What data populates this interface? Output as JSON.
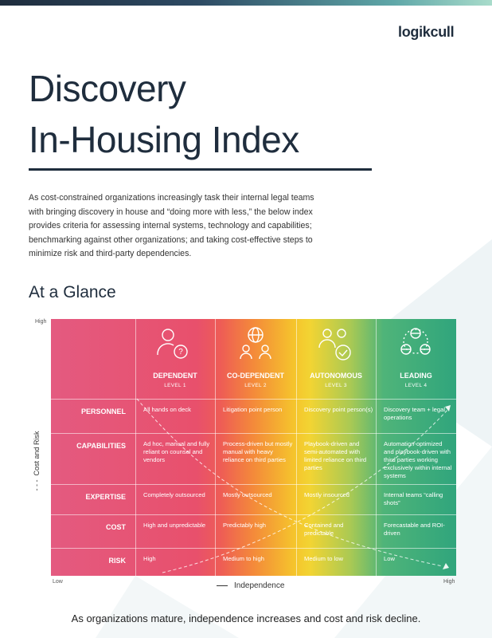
{
  "logo": "logikcull",
  "header": {
    "title": [
      "Discovery",
      "In-Housing Index"
    ]
  },
  "intro": "As cost-constrained organizations increasingly task their internal legal teams with bringing discovery in house and “doing more with less,” the below index provides criteria for assessing internal systems, technology and capabilities; benchmarking against other organizations; and taking cost-effective steps to minimize risk and third-party dependencies.",
  "section_title": "At a Glance",
  "matrix": {
    "levels": [
      {
        "name": "DEPENDENT",
        "level": "LEVEL 1"
      },
      {
        "name": "CO-DEPENDENT",
        "level": "LEVEL 2"
      },
      {
        "name": "AUTONOMOUS",
        "level": "LEVEL 3"
      },
      {
        "name": "LEADING",
        "level": "LEVEL 4"
      }
    ],
    "rows": [
      {
        "label": "PERSONNEL",
        "cells": [
          "All hands on deck",
          "Litigation point person",
          "Discovery point person(s)",
          "Discovery team + legal operations"
        ]
      },
      {
        "label": "CAPABILITIES",
        "cells": [
          "Ad hoc, manual and fully reliant on counsel and vendors",
          "Process-driven but mostly manual with heavy reliance on third parties",
          "Playbook-driven and semi-automated with limited reliance on third parties",
          "Automation-optimized and playbook-driven with third parties working exclusively within internal systems"
        ]
      },
      {
        "label": "EXPERTISE",
        "cells": [
          "Completely outsourced",
          "Mostly outsourced",
          "Mostly insourced",
          "Internal teams “calling shots”"
        ]
      },
      {
        "label": "COST",
        "cells": [
          "High and unpredictable",
          "Predictably high",
          "Contained and predictable",
          "Forecastable and ROI-driven"
        ]
      },
      {
        "label": "RISK",
        "cells": [
          "High",
          "Medium to high",
          "Medium to low",
          "Low"
        ]
      }
    ]
  },
  "axes": {
    "y_high": "High",
    "y_label": "Cost and Risk",
    "x_low": "Low",
    "x_label": "Independence",
    "x_high": "High"
  },
  "caption": "As organizations mature, independence increases and cost and risk decline."
}
